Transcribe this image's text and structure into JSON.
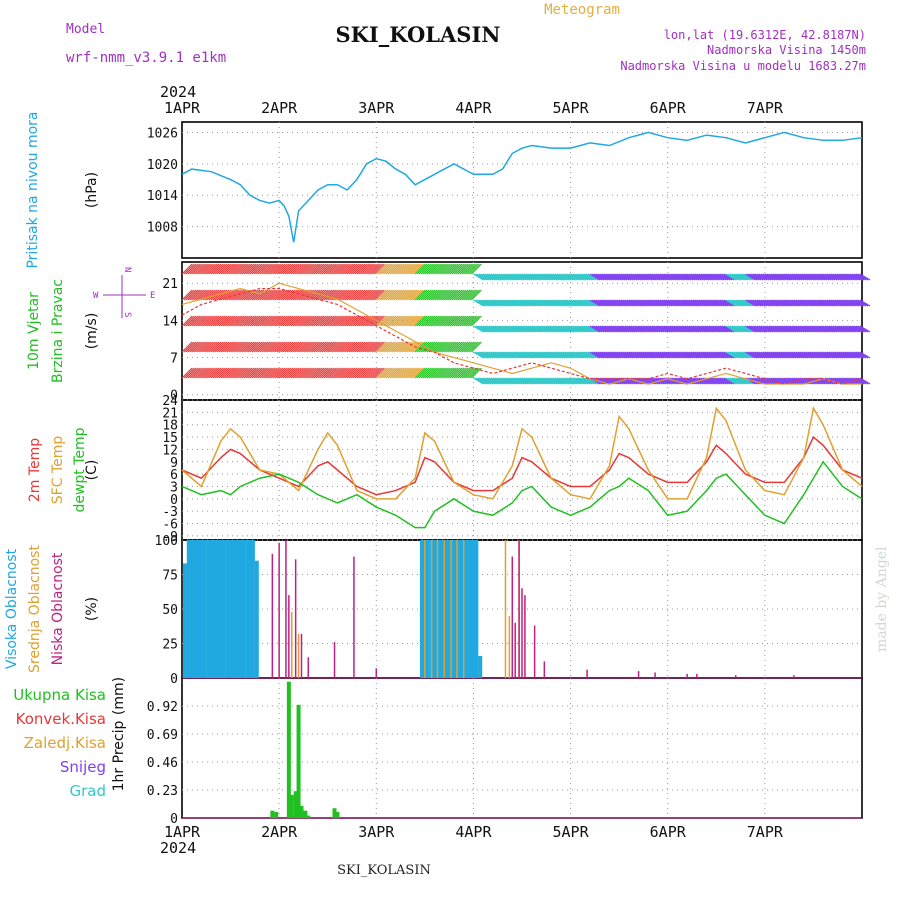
{
  "header": {
    "model_label": "Model",
    "model_name": "wrf-nmm_v3.9.1  e1km",
    "station": "SKI_KOLASIN",
    "product": "Meteogram",
    "lonlat": "lon,lat (19.6312E, 42.8187N)",
    "elevation": "Nadmorska Visina 1450m",
    "model_elevation": "Nadmorska Visina u modelu 1683.27m",
    "credit": "made by Angel",
    "footer_station": "SKI_KOLASIN"
  },
  "time_axis": {
    "year": "2024",
    "labels": [
      "1APR",
      "2APR",
      "3APR",
      "4APR",
      "5APR",
      "6APR",
      "7APR"
    ]
  },
  "wind_compass": {
    "n": "N",
    "s": "S",
    "w": "W",
    "e": "E"
  },
  "colors": {
    "blue": "#20a8e0",
    "green": "#20c020",
    "red": "#e83838",
    "orange": "#e0a030",
    "purple": "#a030c0",
    "magenta": "#c02080",
    "violet": "#8040f0",
    "cyan": "#30c8c8"
  },
  "chart_data": [
    {
      "type": "line",
      "panel": "pressure",
      "ylabel_lines": [
        "Pritisak na nivou mora"
      ],
      "unit": "(hPa)",
      "yticks": [
        "1026",
        "1020",
        "1014",
        "1008"
      ],
      "ylim": [
        1002,
        1028
      ],
      "x": [
        0,
        0.1,
        0.3,
        0.5,
        0.6,
        0.7,
        0.8,
        0.9,
        1.0,
        1.05,
        1.1,
        1.15,
        1.2,
        1.3,
        1.4,
        1.5,
        1.6,
        1.7,
        1.8,
        1.9,
        2.0,
        2.1,
        2.2,
        2.3,
        2.4,
        2.5,
        2.6,
        2.7,
        2.8,
        2.9,
        3.0,
        3.1,
        3.2,
        3.3,
        3.4,
        3.5,
        3.6,
        3.8,
        4.0,
        4.2,
        4.4,
        4.6,
        4.8,
        5.0,
        5.2,
        5.4,
        5.6,
        5.8,
        6.0,
        6.2,
        6.4,
        6.6,
        6.8,
        7.0
      ],
      "values": [
        1018,
        1019,
        1018.5,
        1017,
        1016,
        1014,
        1013,
        1012.5,
        1013,
        1012,
        1010,
        1005,
        1011,
        1013,
        1015,
        1016,
        1016,
        1015,
        1017,
        1020,
        1021,
        1020.5,
        1019,
        1018,
        1016,
        1017,
        1018,
        1019,
        1020,
        1019,
        1018,
        1018,
        1018,
        1019,
        1022,
        1023,
        1023.5,
        1023,
        1023,
        1024,
        1023.5,
        1025,
        1026,
        1025,
        1024.5,
        1025.5,
        1025,
        1024,
        1025,
        1026,
        1025,
        1024.5,
        1024.5,
        1025
      ],
      "series_color": "blue"
    },
    {
      "type": "line",
      "panel": "wind",
      "ylabel_lines": [
        "10m Vjetar",
        "Brzina i Pravac"
      ],
      "unit": "(m/s)",
      "yticks": [
        "21",
        "14",
        "7",
        "0"
      ],
      "ylim": [
        -1,
        25
      ],
      "x": [
        0,
        0.2,
        0.4,
        0.6,
        0.8,
        1.0,
        1.2,
        1.4,
        1.6,
        1.8,
        2.0,
        2.2,
        2.4,
        2.6,
        2.8,
        3.0,
        3.2,
        3.4,
        3.6,
        3.8,
        4.0,
        4.2,
        4.4,
        4.6,
        4.8,
        5.0,
        5.2,
        5.4,
        5.6,
        5.8,
        6.0,
        6.2,
        6.4,
        6.6,
        6.8,
        7.0
      ],
      "series": [
        {
          "name": "speed",
          "color": "orange",
          "values": [
            17,
            18,
            19,
            20,
            19,
            21,
            20,
            19,
            18,
            16,
            14,
            12,
            10,
            8,
            7,
            6,
            5,
            4,
            5,
            6,
            5,
            3,
            2,
            3,
            2,
            3,
            2,
            3,
            4,
            3,
            2,
            2,
            2,
            3,
            2,
            2
          ]
        },
        {
          "name": "gust",
          "color": "red",
          "values": [
            15,
            17,
            18,
            19,
            20,
            20,
            19,
            18,
            17,
            15,
            13,
            11,
            9,
            8,
            6,
            5,
            4,
            5,
            6,
            5,
            4,
            3,
            3,
            3,
            3,
            4,
            3,
            4,
            5,
            4,
            3,
            2,
            3,
            3,
            2,
            3
          ]
        }
      ]
    },
    {
      "type": "line",
      "panel": "temperature",
      "ylabel_lines": [
        "2m Temp",
        "SFC Temp",
        "dewpt Temp"
      ],
      "unit": "(C)",
      "yticks": [
        "24",
        "21",
        "18",
        "15",
        "12",
        "9",
        "6",
        "3",
        "0",
        "-3",
        "-6",
        "-9"
      ],
      "ylim": [
        -10,
        24
      ],
      "x": [
        0,
        0.2,
        0.4,
        0.5,
        0.6,
        0.8,
        1.0,
        1.2,
        1.4,
        1.5,
        1.6,
        1.8,
        2.0,
        2.2,
        2.4,
        2.5,
        2.6,
        2.8,
        3.0,
        3.2,
        3.4,
        3.5,
        3.6,
        3.8,
        4.0,
        4.2,
        4.4,
        4.5,
        4.6,
        4.8,
        5.0,
        5.2,
        5.4,
        5.5,
        5.6,
        5.8,
        6.0,
        6.2,
        6.4,
        6.5,
        6.6,
        6.8,
        7.0
      ],
      "series": [
        {
          "name": "2m Temp",
          "color": "red",
          "values": [
            7,
            5,
            10,
            12,
            11,
            7,
            5,
            3,
            8,
            9,
            7,
            3,
            1,
            2,
            4,
            10,
            9,
            4,
            2,
            2,
            5,
            10,
            9,
            5,
            3,
            3,
            7,
            11,
            10,
            6,
            4,
            4,
            9,
            13,
            11,
            6,
            4,
            4,
            10,
            15,
            13,
            7,
            5
          ]
        },
        {
          "name": "SFC Temp",
          "color": "orange",
          "values": [
            7,
            3,
            14,
            17,
            15,
            7,
            6,
            2,
            12,
            16,
            13,
            2,
            0,
            0,
            5,
            16,
            14,
            4,
            1,
            0,
            8,
            17,
            15,
            5,
            1,
            0,
            8,
            20,
            17,
            7,
            0,
            0,
            10,
            22,
            19,
            7,
            2,
            1,
            10,
            22,
            18,
            7,
            3
          ]
        },
        {
          "name": "dewpt Temp",
          "color": "green",
          "values": [
            3,
            1,
            2,
            1,
            3,
            5,
            6,
            4,
            1,
            0,
            -1,
            1,
            -2,
            -4,
            -7,
            -7,
            -3,
            0,
            -3,
            -4,
            -1,
            2,
            3,
            -2,
            -4,
            -2,
            2,
            3,
            5,
            2,
            -4,
            -3,
            2,
            5,
            6,
            1,
            -4,
            -6,
            1,
            5,
            9,
            3,
            0
          ]
        }
      ]
    },
    {
      "type": "bar",
      "panel": "clouds",
      "ylabel_lines": [
        "Visoka Oblacnost",
        "Srednja Oblacnost",
        "Niska Oblacnost"
      ],
      "unit": "(%)",
      "yticks": [
        "100",
        "75",
        "50",
        "25",
        "0"
      ],
      "ylim": [
        0,
        100
      ],
      "series": [
        {
          "name": "Visoka Oblacnost",
          "color": "blue",
          "x": [
            0.03,
            0.07,
            0.1,
            0.13,
            0.17,
            0.2,
            0.23,
            0.27,
            0.3,
            0.33,
            0.37,
            0.4,
            0.43,
            0.47,
            0.5,
            0.53,
            0.57,
            0.6,
            0.63,
            0.67,
            0.7,
            0.73,
            0.77,
            2.47,
            2.5,
            2.53,
            2.57,
            2.6,
            2.63,
            2.67,
            2.7,
            2.73,
            2.77,
            2.8,
            2.83,
            2.87,
            2.9,
            2.93,
            2.97,
            3.0,
            3.03,
            3.07
          ],
          "values": [
            83,
            100,
            100,
            100,
            100,
            100,
            100,
            100,
            100,
            100,
            100,
            100,
            100,
            100,
            100,
            100,
            100,
            100,
            100,
            100,
            100,
            100,
            85,
            100,
            100,
            100,
            100,
            100,
            100,
            100,
            100,
            100,
            100,
            100,
            100,
            100,
            100,
            100,
            100,
            100,
            100,
            16
          ]
        },
        {
          "name": "Srednja Oblacnost",
          "color": "orange",
          "x": [
            1.13,
            1.2,
            2.5,
            2.57,
            2.63,
            2.7,
            2.77,
            2.83,
            2.9,
            3.33,
            3.37,
            3.47
          ],
          "values": [
            48,
            32,
            100,
            100,
            100,
            100,
            100,
            100,
            100,
            100,
            45,
            100
          ]
        },
        {
          "name": "Niska Oblacnost",
          "color": "magenta",
          "x": [
            0.93,
            1.0,
            1.07,
            1.1,
            1.17,
            1.23,
            1.3,
            1.57,
            1.77,
            2.0,
            3.4,
            3.43,
            3.47,
            3.5,
            3.53,
            3.63,
            3.73,
            4.17,
            4.7,
            4.87,
            5.2,
            5.3,
            5.7,
            6.3
          ],
          "values": [
            90,
            98,
            100,
            60,
            86,
            32,
            15,
            26,
            88,
            7,
            88,
            40,
            100,
            65,
            60,
            38,
            12,
            6,
            5,
            4,
            3,
            3,
            2,
            2
          ]
        }
      ]
    },
    {
      "type": "bar",
      "panel": "precipitation",
      "ylabel_lines": [
        "1hr Precip"
      ],
      "unit": "(mm)",
      "legend": [
        "Ukupna  Kisa",
        "Konvek.Kisa",
        "Zaledj.Kisa",
        "Snijeg",
        "Grad"
      ],
      "yticks": [
        "0.92",
        "0.69",
        "0.46",
        "0.23",
        "0"
      ],
      "ylim": [
        0,
        1.15
      ],
      "series": [
        {
          "name": "Ukupna  Kisa",
          "color": "green",
          "x": [
            0.93,
            0.97,
            1.1,
            1.13,
            1.17,
            1.2,
            1.23,
            1.27,
            1.3,
            1.57,
            1.6
          ],
          "values": [
            0.06,
            0.05,
            1.12,
            0.19,
            0.22,
            0.93,
            0.1,
            0.06,
            0.02,
            0.08,
            0.05
          ]
        }
      ]
    }
  ]
}
